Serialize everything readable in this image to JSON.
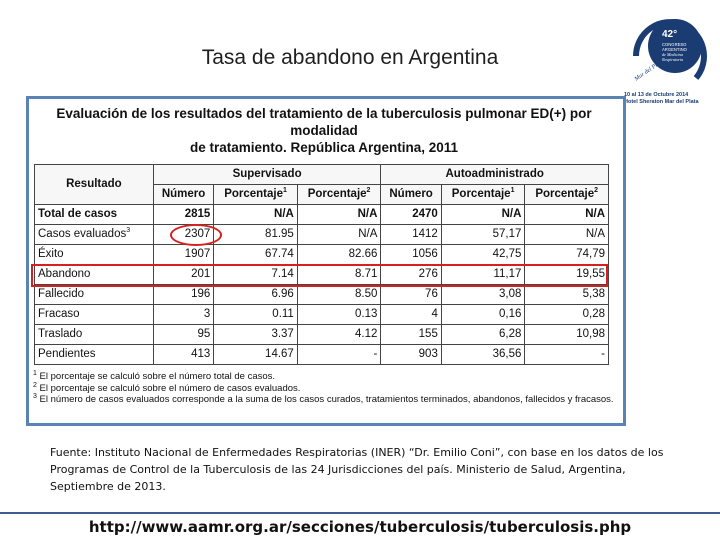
{
  "slide_title": "Tasa de abandono en Argentina",
  "logo": {
    "number": "42°",
    "lines": [
      "CONGRESO",
      "ARGENTINO",
      "de Medicina",
      "Respiratoria"
    ],
    "arc_text": "Mar del Plata",
    "caption_lines": [
      "10 al 13 de Octubre 2014",
      "Hotel Sheraton Mar del Plata"
    ],
    "accent": "#1a3c73"
  },
  "table_image": {
    "heading_line1": "Evaluación de los resultados del tratamiento de la tuberculosis pulmonar ED(+) por modalidad",
    "heading_line2": "de tratamiento. República Argentina, 2011",
    "col_resultado": "Resultado",
    "group_supervisado": "Supervisado",
    "group_autoadministrado": "Autoadministrado",
    "col_numero": "Número",
    "col_porcentaje": "Porcentaje",
    "sup1": "1",
    "sup2": "2",
    "sup3": "3",
    "rows": [
      {
        "label": "Total de casos",
        "s_num": "2815",
        "s_p1": "N/A",
        "s_p2": "N/A",
        "a_num": "2470",
        "a_p1": "N/A",
        "a_p2": "N/A"
      },
      {
        "label": "Casos evaluados",
        "s_num": "2307",
        "s_p1": "81.95",
        "s_p2": "N/A",
        "a_num": "1412",
        "a_p1": "57,17",
        "a_p2": "N/A"
      },
      {
        "label": "Éxito",
        "s_num": "1907",
        "s_p1": "67.74",
        "s_p2": "82.66",
        "a_num": "1056",
        "a_p1": "42,75",
        "a_p2": "74,79"
      },
      {
        "label": "Abandono",
        "s_num": "201",
        "s_p1": "7.14",
        "s_p2": "8.71",
        "a_num": "276",
        "a_p1": "11,17",
        "a_p2": "19,55"
      },
      {
        "label": "Fallecido",
        "s_num": "196",
        "s_p1": "6.96",
        "s_p2": "8.50",
        "a_num": "76",
        "a_p1": "3,08",
        "a_p2": "5,38"
      },
      {
        "label": "Fracaso",
        "s_num": "3",
        "s_p1": "0.11",
        "s_p2": "0.13",
        "a_num": "4",
        "a_p1": "0,16",
        "a_p2": "0,28"
      },
      {
        "label": "Traslado",
        "s_num": "95",
        "s_p1": "3.37",
        "s_p2": "4.12",
        "a_num": "155",
        "a_p1": "6,28",
        "a_p2": "10,98"
      },
      {
        "label": "Pendientes",
        "s_num": "413",
        "s_p1": "14.67",
        "s_p2": "-",
        "a_num": "903",
        "a_p1": "36,56",
        "a_p2": "-"
      }
    ],
    "footnote1": "El porcentaje se calculó sobre el número total de casos.",
    "footnote2": "El porcentaje se calculó sobre el número de casos evaluados.",
    "footnote3": "El número de casos evaluados corresponde a la suma de los casos curados, tratamientos terminados, abandonos, fallecidos y fracasos."
  },
  "highlight_color": "#d62020",
  "source_text": "Fuente: Instituto Nacional de Enfermedades Respiratorias (INER) “Dr. Emilio Coni”, con base en los datos de los Programas de Control de la Tuberculosis de las 24 Jurisdicciones del país. Ministerio de Salud, Argentina, Septiembre de 2013.",
  "url": "http://www.aamr.org.ar/secciones/tuberculosis/tuberculosis.php"
}
